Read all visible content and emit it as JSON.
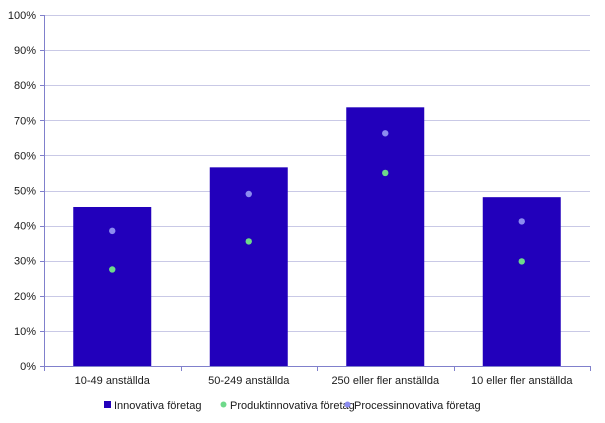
{
  "chart_data": {
    "type": "bar",
    "categories": [
      "10-49 anställda",
      "50-249 anställda",
      "250 eller fler anställda",
      "10 eller fler anställda"
    ],
    "series": [
      {
        "name": "Innovativa företag",
        "kind": "bar",
        "color": "#2200bb",
        "values": [
          45.3,
          56.6,
          73.7,
          48.1
        ]
      },
      {
        "name": "Produktinnovativa företag",
        "kind": "point",
        "color": "#6ed98a",
        "values": [
          27.5,
          35.5,
          55.0,
          29.8
        ]
      },
      {
        "name": "Processinnovativa företag",
        "kind": "point",
        "color": "#8c8cf0",
        "values": [
          38.5,
          49.0,
          66.3,
          41.2
        ]
      }
    ],
    "ylim": [
      0,
      100
    ],
    "yticks": [
      "0%",
      "10%",
      "20%",
      "30%",
      "40%",
      "50%",
      "60%",
      "70%",
      "80%",
      "90%",
      "100%"
    ],
    "grid": true,
    "legend_position": "bottom",
    "gridline_color": "#c9c9e6",
    "axis_color": "#8080cc"
  }
}
